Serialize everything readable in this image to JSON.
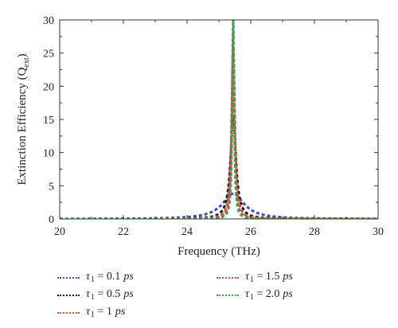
{
  "chart_data": {
    "type": "line",
    "xlabel": "Frequency (THz)",
    "ylabel_main": "Extinction Efficiency (Q",
    "ylabel_sub": "ext",
    "ylabel_close": ")",
    "xlim": [
      20,
      30
    ],
    "ylim": [
      0,
      30
    ],
    "x_ticks": [
      20,
      22,
      24,
      26,
      28,
      30
    ],
    "y_ticks": [
      0,
      5,
      10,
      15,
      20,
      25,
      30
    ],
    "x_tick_labels": [
      "20",
      "22",
      "24",
      "26",
      "28",
      "30"
    ],
    "y_tick_labels": [
      "0",
      "5",
      "10",
      "15",
      "20",
      "25",
      "30"
    ],
    "grid": false,
    "legend_position": "bottom",
    "resonance_center_thz": 25.45,
    "series": [
      {
        "name": "τ1 = 0.1 ps",
        "color": "#3a4fb5",
        "peak": 3.8,
        "half_width": 0.42
      },
      {
        "name": "τ1 = 0.5 ps",
        "color": "#1a1a1a",
        "peak": 15.0,
        "half_width": 0.105
      },
      {
        "name": "τ1 = 1 ps",
        "color": "#e2502a",
        "peak": 26.0,
        "half_width": 0.06
      },
      {
        "name": "τ1 = 1.5 ps",
        "color": "#d9435f",
        "peak": 28.5,
        "half_width": 0.045
      },
      {
        "name": "τ1 = 2.0 ps",
        "color": "#3aa24a",
        "peak": 30.0,
        "half_width": 0.035
      }
    ]
  },
  "legend": [
    {
      "sym": "τ",
      "sub": "1",
      "eq": " = 0.1",
      "unit": "ps",
      "color": "#3a4fb5"
    },
    {
      "sym": "τ",
      "sub": "1",
      "eq": " = 0.5",
      "unit": "ps",
      "color": "#1a1a1a"
    },
    {
      "sym": "τ",
      "sub": "1",
      "eq": " = 1",
      "unit": "ps",
      "color": "#e2502a"
    },
    {
      "sym": "τ",
      "sub": "1",
      "eq": " = 1.5",
      "unit": "ps",
      "color": "#d9435f"
    },
    {
      "sym": "τ",
      "sub": "1",
      "eq": " = 2.0",
      "unit": "ps",
      "color": "#3aa24a"
    }
  ]
}
